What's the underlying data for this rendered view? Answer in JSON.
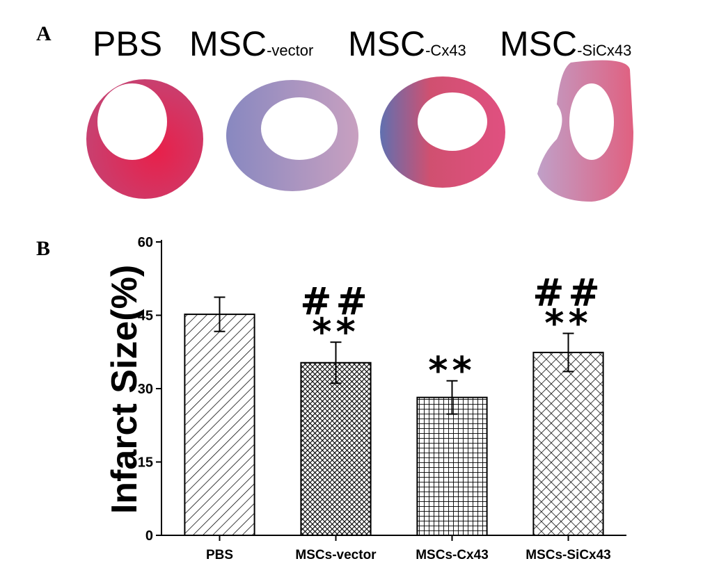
{
  "panel_a": {
    "label": "A",
    "images": [
      {
        "name": "PBS"
      },
      {
        "name": "MSC",
        "sub": "-vector"
      },
      {
        "name": "MSC",
        "sub": "-Cx43"
      },
      {
        "name": "MSC",
        "sub": "-SiCx43"
      }
    ]
  },
  "chart_data": {
    "type": "bar",
    "panel_label": "B",
    "ylabel": "Infarct Size(%)",
    "categories": [
      "PBS",
      "MSCs-vector",
      "MSCs-Cx43",
      "MSCs-SiCx43"
    ],
    "values": [
      45.2,
      35.3,
      28.2,
      37.4
    ],
    "errors": [
      3.5,
      4.2,
      3.4,
      3.9
    ],
    "hatch": [
      "diagonal",
      "dense-cross",
      "grid",
      "cross"
    ],
    "hash_labels": [
      null,
      "##",
      null,
      "##"
    ],
    "star_labels": [
      null,
      "**",
      "**",
      "**"
    ],
    "color": "#000000",
    "ylim": [
      0,
      60
    ],
    "yticks": [
      0,
      15,
      30,
      45,
      60
    ]
  }
}
